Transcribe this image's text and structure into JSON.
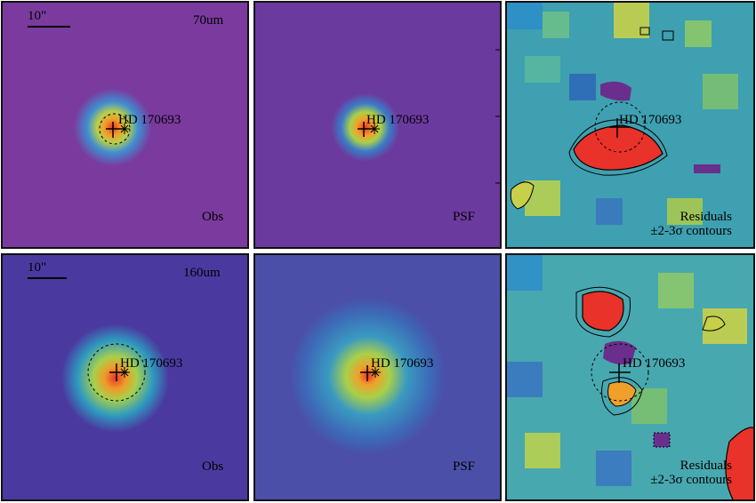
{
  "panels": {
    "obs70": {
      "band": "70um",
      "scalebar": "10\"",
      "source": "HD 170693",
      "corner": "Obs"
    },
    "psf70": {
      "source": "HD 170693",
      "corner": "PSF"
    },
    "res70": {
      "source": "HD 170693",
      "corner_line1": "Residuals",
      "corner_line2": "±2-3σ contours"
    },
    "obs160": {
      "band": "160um",
      "scalebar": "10\"",
      "source": "HD 170693",
      "corner": "Obs"
    },
    "psf160": {
      "source": "HD 170693",
      "corner": "PSF"
    },
    "res160": {
      "source": "HD 170693",
      "corner_line1": "Residuals",
      "corner_line2": "±2-3σ contours"
    }
  },
  "colors": {
    "background_obs70": "#7a3a9e",
    "background_psf70": "#6b3a9e",
    "background_psf160": "#4b4fa8",
    "peak": "#e83a2a",
    "contour": "#000000"
  }
}
